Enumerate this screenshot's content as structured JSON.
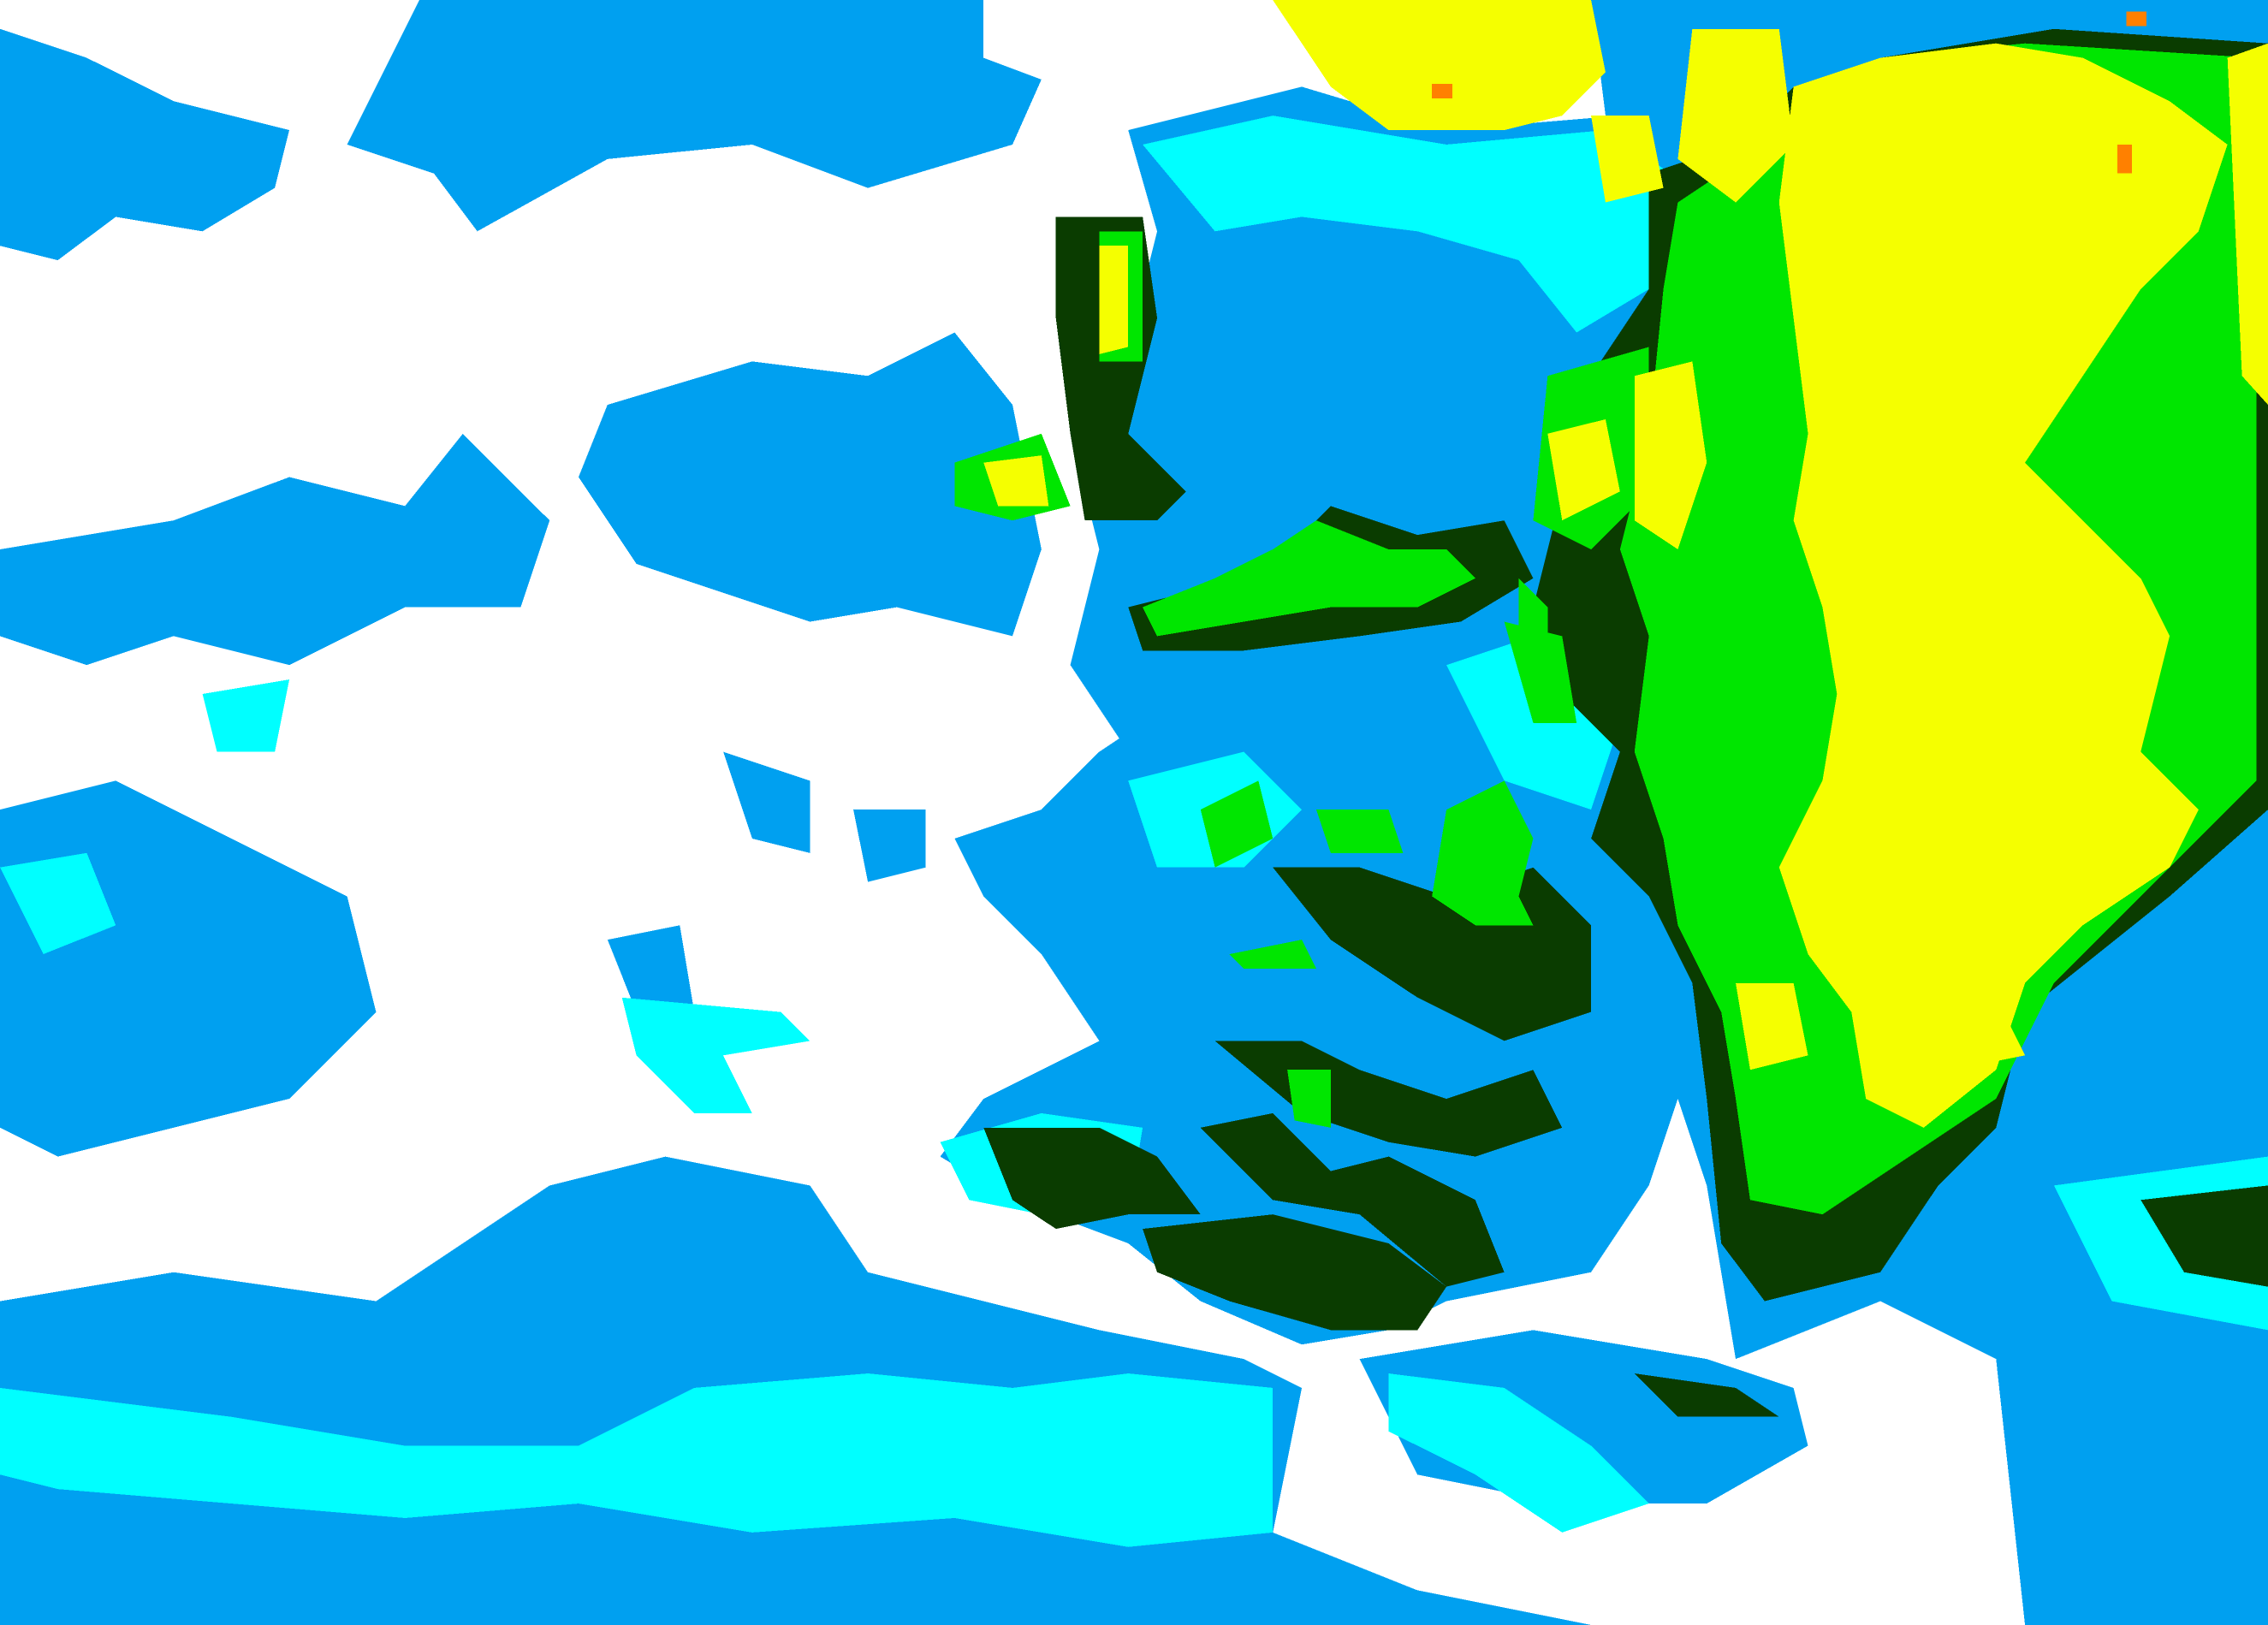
{
  "map": {
    "type": "precipitation-radar",
    "legend_shown": false,
    "colors": {
      "background": "#ffffff",
      "light": "#00a0f0",
      "light_moderate": "#00ffff",
      "moderate": "#0a3c00",
      "moderate_heavy": "#00e600",
      "heavy": "#f5ff00",
      "very_heavy": "#ff8000"
    }
  }
}
